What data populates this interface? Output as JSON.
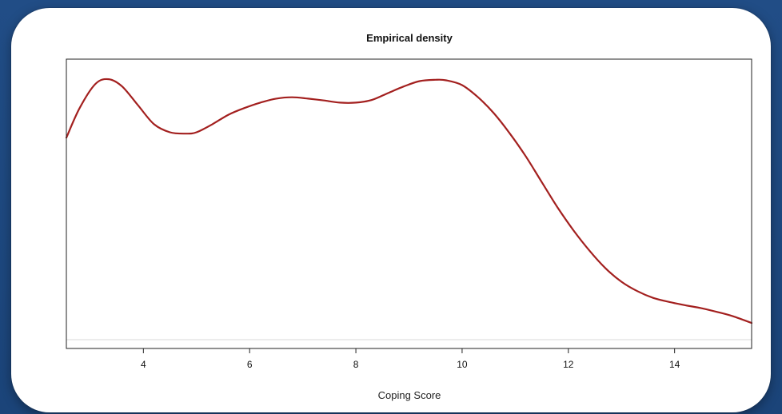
{
  "colors": {
    "background": "#1f4a82",
    "card": "#ffffff",
    "curve": "#a3201f",
    "axis": "#222222",
    "baseline": "#d8d8d8"
  },
  "chart_data": {
    "type": "line",
    "title": "Empirical density",
    "xlabel": "Coping Score",
    "ylabel": "",
    "xlim": [
      2.55,
      15.45
    ],
    "ylim": [
      0.0,
      1.0
    ],
    "xticks": [
      4,
      6,
      8,
      10,
      12,
      14
    ],
    "xtick_labels": [
      "4",
      "6",
      "8",
      "10",
      "12",
      "14"
    ],
    "y_axis_ticks_shown": false,
    "grid": false,
    "legend": "none",
    "series": [
      {
        "x": [
          2.55,
          2.8,
          3.1,
          3.35,
          3.6,
          3.9,
          4.2,
          4.5,
          4.8,
          5.0,
          5.3,
          5.6,
          5.9,
          6.2,
          6.5,
          6.8,
          7.1,
          7.4,
          7.7,
          8.0,
          8.3,
          8.6,
          8.9,
          9.2,
          9.5,
          9.7,
          10.0,
          10.3,
          10.6,
          10.9,
          11.2,
          11.5,
          11.8,
          12.1,
          12.4,
          12.7,
          13.0,
          13.3,
          13.6,
          13.9,
          14.2,
          14.5,
          14.8,
          15.1,
          15.45
        ],
        "y": [
          0.75,
          0.86,
          0.95,
          0.967,
          0.94,
          0.87,
          0.8,
          0.77,
          0.765,
          0.77,
          0.8,
          0.835,
          0.86,
          0.88,
          0.895,
          0.9,
          0.895,
          0.888,
          0.88,
          0.88,
          0.89,
          0.915,
          0.94,
          0.96,
          0.965,
          0.963,
          0.945,
          0.9,
          0.84,
          0.765,
          0.68,
          0.585,
          0.49,
          0.405,
          0.33,
          0.265,
          0.215,
          0.18,
          0.155,
          0.14,
          0.128,
          0.117,
          0.103,
          0.087,
          0.062
        ]
      }
    ]
  }
}
